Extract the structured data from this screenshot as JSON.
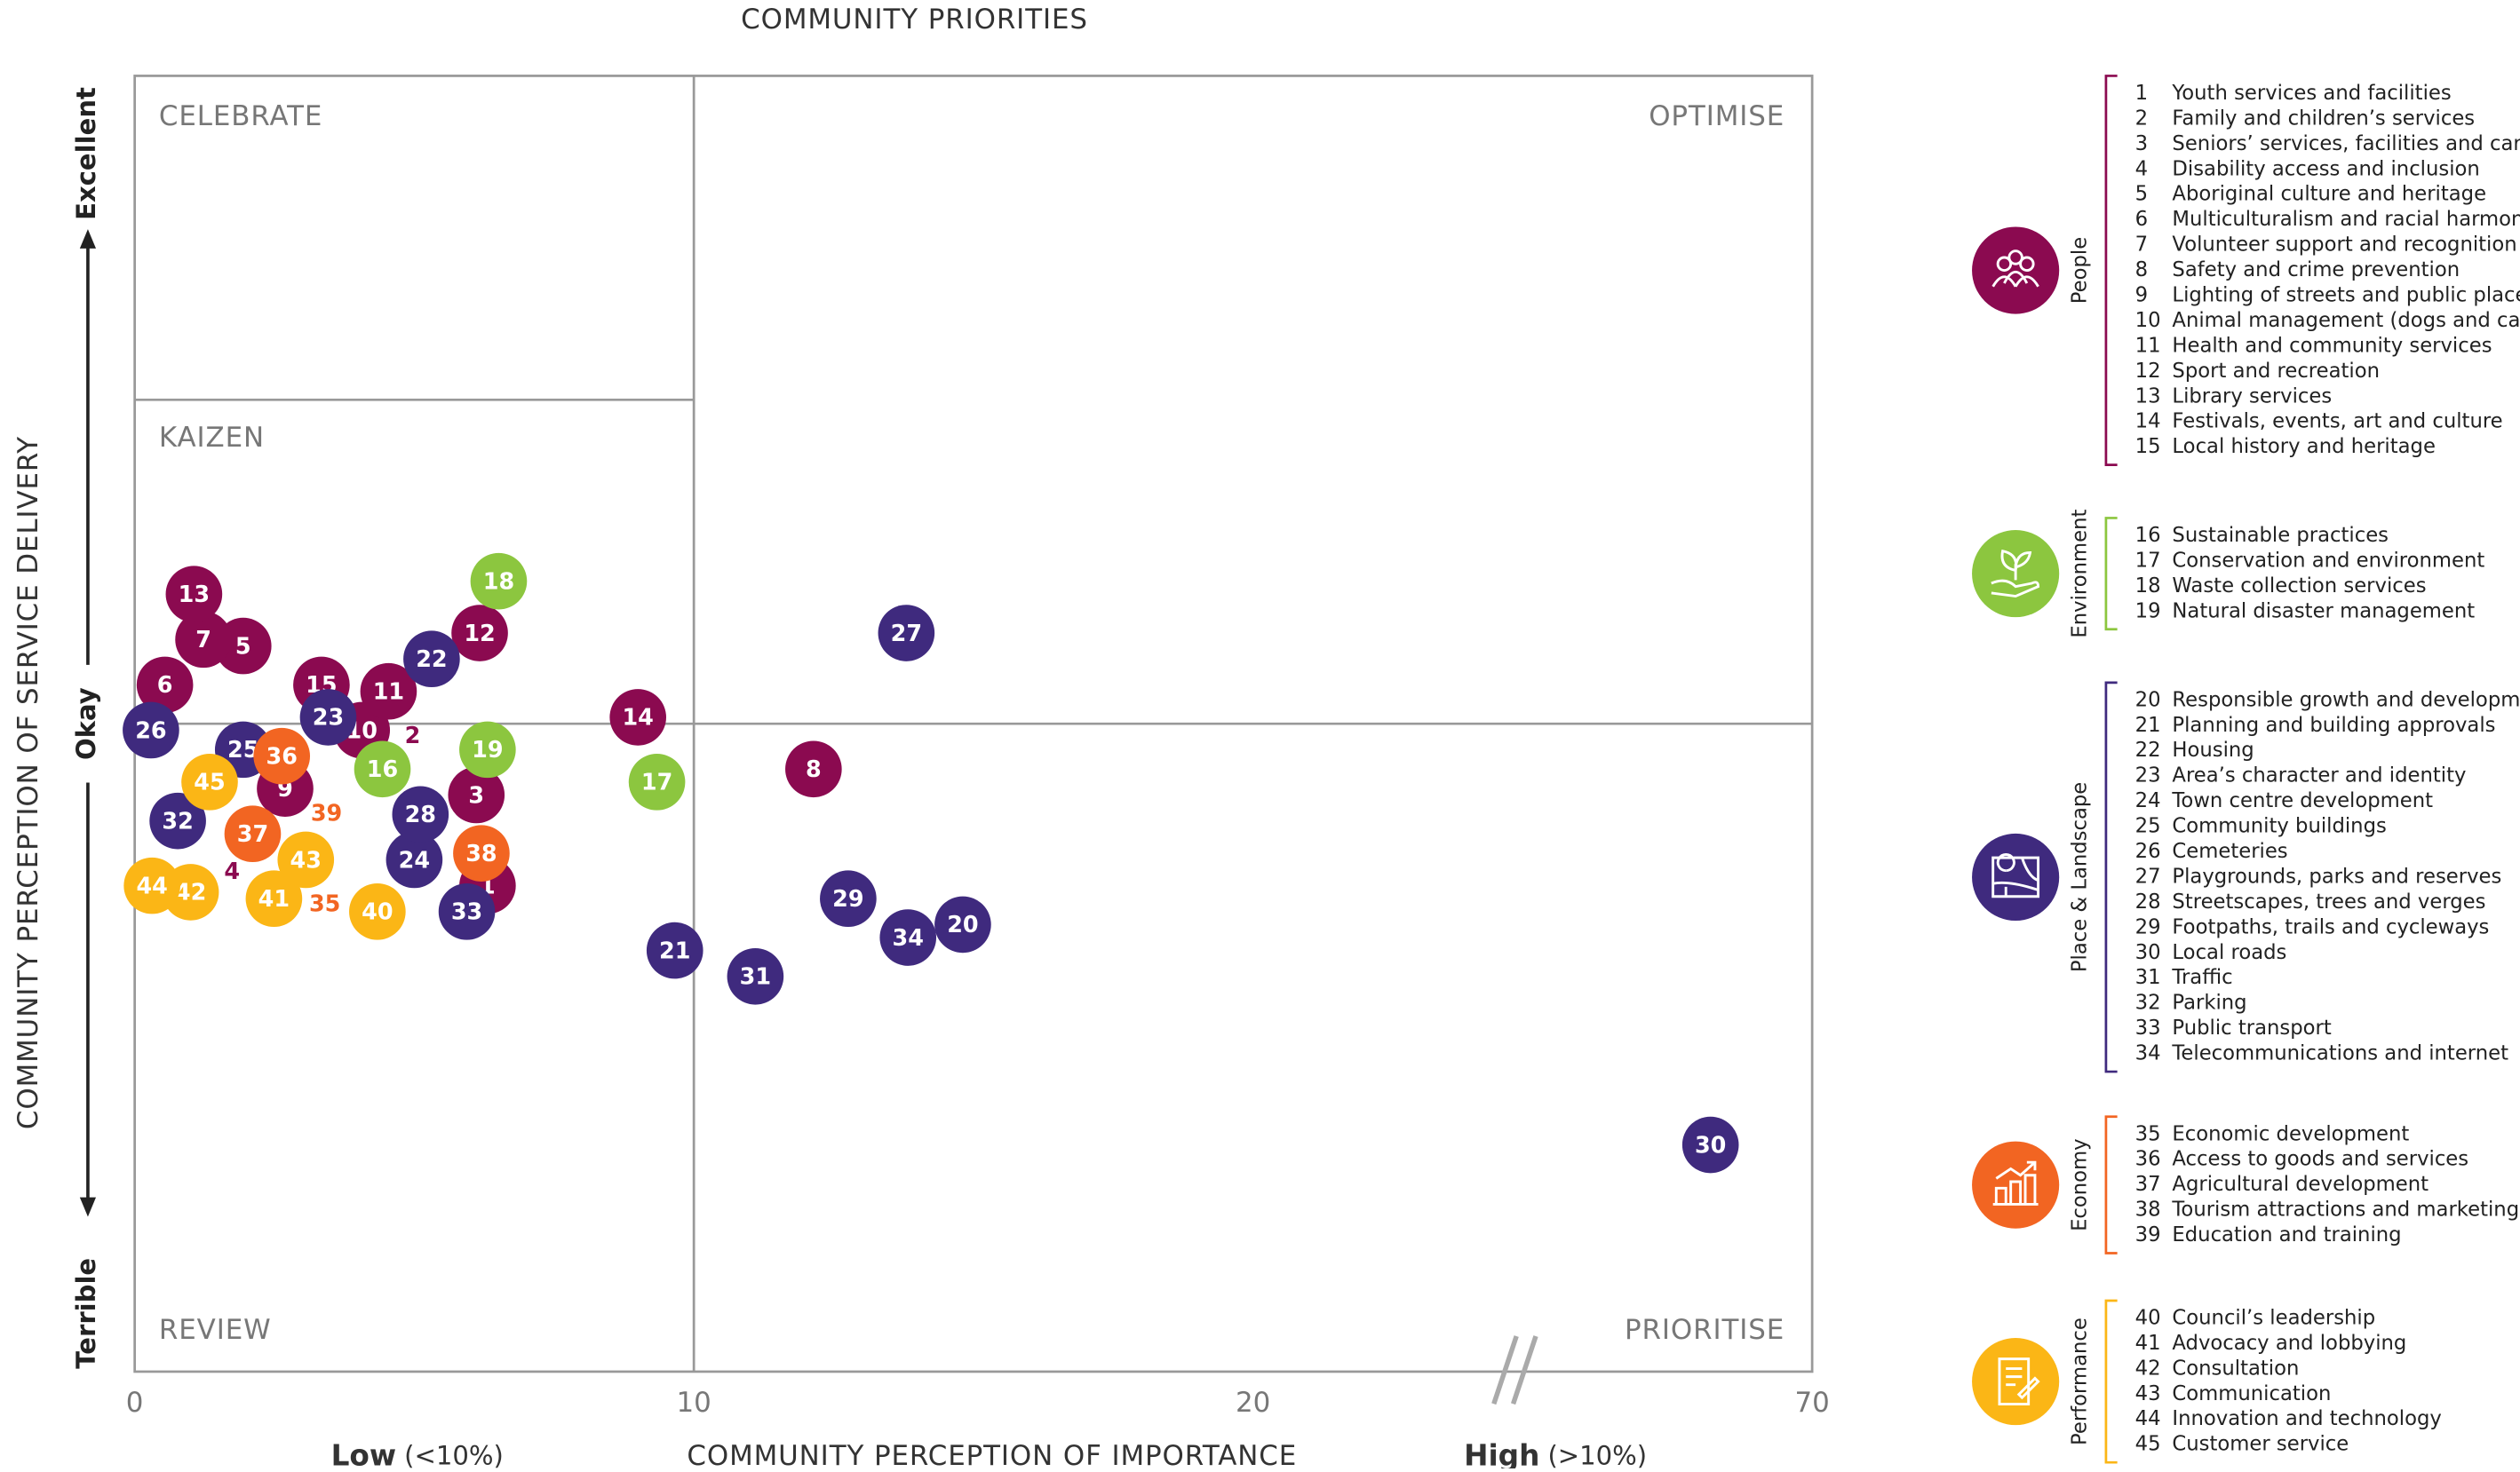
{
  "chart_data": {
    "type": "scatter",
    "title": "COMMUNITY PRIORITIES",
    "x_label": "COMMUNITY PERCEPTION OF IMPORTANCE",
    "y_label": "COMMUNITY PERCEPTION OF SERVICE DELIVERY",
    "x_annotations": [
      {
        "bold": "Low",
        "text": "(<10%)"
      },
      {
        "bold": "High",
        "text": "(>10%)"
      }
    ],
    "quadrants": [
      "CELEBRATE",
      "OPTIMISE",
      "KAIZEN",
      "REVIEW",
      "PRIORITISE"
    ],
    "quadrant_split": {
      "x": 10,
      "y": 0,
      "y_upper": 0.5
    },
    "xlim": [
      0,
      70
    ],
    "xticks": [
      0,
      10,
      20,
      70
    ],
    "axis_break": true,
    "ylim": [
      -1,
      1
    ],
    "yticks": [
      {
        "value": 0.88,
        "label": "Excellent"
      },
      {
        "value": 0,
        "label": "Okay"
      },
      {
        "value": -0.91,
        "label": "Terrible"
      }
    ],
    "series": [
      {
        "name": "People",
        "color": "#8b0a50",
        "items": [
          {
            "id": 2,
            "label": "Family and children’s services",
            "x": 4.97,
            "y": -0.02,
            "style": "label"
          },
          {
            "id": 4,
            "label": "Disability access and inclusion",
            "x": 1.74,
            "y": -0.23,
            "style": "label"
          },
          {
            "id": 1,
            "label": "Youth services and facilities",
            "x": 6.31,
            "y": -0.25
          },
          {
            "id": 3,
            "label": "Seniors’ services, facilities and care",
            "x": 6.11,
            "y": -0.11
          },
          {
            "id": 5,
            "label": "Aboriginal culture and heritage",
            "x": 1.94,
            "y": 0.12
          },
          {
            "id": 6,
            "label": "Multiculturalism and racial harmony",
            "x": 0.54,
            "y": 0.06
          },
          {
            "id": 7,
            "label": "Volunteer support and recognition",
            "x": 1.23,
            "y": 0.13
          },
          {
            "id": 8,
            "label": "Safety and crime prevention",
            "x": 12.14,
            "y": -0.07
          },
          {
            "id": 9,
            "label": "Lighting of streets and public places",
            "x": 2.69,
            "y": -0.1
          },
          {
            "id": 10,
            "label": "Animal management (dogs and cats)",
            "x": 4.06,
            "y": -0.01
          },
          {
            "id": 11,
            "label": "Health and community services",
            "x": 4.54,
            "y": 0.05
          },
          {
            "id": 12,
            "label": "Sport and recreation",
            "x": 6.17,
            "y": 0.14
          },
          {
            "id": 13,
            "label": "Library services",
            "x": 1.06,
            "y": 0.2
          },
          {
            "id": 14,
            "label": "Festivals, events, art and culture",
            "x": 9.0,
            "y": 0.01
          },
          {
            "id": 15,
            "label": "Local history and heritage",
            "x": 3.34,
            "y": 0.06
          }
        ]
      },
      {
        "name": "Environment",
        "color": "#8cc63f",
        "items": [
          {
            "id": 16,
            "label": "Sustainable practices",
            "x": 4.43,
            "y": -0.07
          },
          {
            "id": 17,
            "label": "Conservation and environment",
            "x": 9.34,
            "y": -0.09
          },
          {
            "id": 18,
            "label": "Waste collection services",
            "x": 6.51,
            "y": 0.22
          },
          {
            "id": 19,
            "label": "Natural disaster management",
            "x": 6.31,
            "y": -0.04
          }
        ]
      },
      {
        "name": "Place & Landscape",
        "color": "#3f2a7e",
        "items": [
          {
            "id": 20,
            "label": "Responsible growth and development",
            "x": 14.81,
            "y": -0.31
          },
          {
            "id": 21,
            "label": "Planning and building approvals",
            "x": 9.66,
            "y": -0.35
          },
          {
            "id": 22,
            "label": "Housing",
            "x": 5.31,
            "y": 0.1
          },
          {
            "id": 23,
            "label": "Area’s character and identity",
            "x": 3.46,
            "y": 0.01
          },
          {
            "id": 24,
            "label": "Town centre development",
            "x": 5.0,
            "y": -0.21
          },
          {
            "id": 25,
            "label": "Community buildings",
            "x": 1.94,
            "y": -0.04
          },
          {
            "id": 26,
            "label": "Cemeteries",
            "x": 0.29,
            "y": -0.01
          },
          {
            "id": 27,
            "label": "Playgrounds, parks and reserves",
            "x": 13.8,
            "y": 0.14
          },
          {
            "id": 28,
            "label": "Streetscapes, trees and verges",
            "x": 5.11,
            "y": -0.14
          },
          {
            "id": 29,
            "label": "Footpaths, trails and cycleways",
            "x": 12.76,
            "y": -0.27
          },
          {
            "id": 30,
            "label": "Local roads",
            "x": 60.91,
            "y": -0.65
          },
          {
            "id": 31,
            "label": "Traffic",
            "x": 11.1,
            "y": -0.39
          },
          {
            "id": 32,
            "label": "Parking",
            "x": 0.77,
            "y": -0.15
          },
          {
            "id": 33,
            "label": "Public transport",
            "x": 5.94,
            "y": -0.29
          },
          {
            "id": 34,
            "label": "Telecommunications and internet",
            "x": 13.83,
            "y": -0.33
          }
        ]
      },
      {
        "name": "Economy",
        "color": "#f26522",
        "items": [
          {
            "id": 35,
            "label": "Economic development",
            "x": 3.4,
            "y": -0.28,
            "style": "label"
          },
          {
            "id": 39,
            "label": "Education and training",
            "x": 3.43,
            "y": -0.14,
            "style": "label"
          },
          {
            "id": 36,
            "label": "Access to goods and services",
            "x": 2.63,
            "y": -0.05
          },
          {
            "id": 37,
            "label": "Agricultural development",
            "x": 2.11,
            "y": -0.17
          },
          {
            "id": 38,
            "label": "Tourism attractions and marketing",
            "x": 6.2,
            "y": -0.2
          }
        ]
      },
      {
        "name": "Performance",
        "color": "#fbb616",
        "items": [
          {
            "id": 40,
            "label": "Council’s leadership",
            "x": 4.34,
            "y": -0.29
          },
          {
            "id": 41,
            "label": "Advocacy and lobbying",
            "x": 2.49,
            "y": -0.27
          },
          {
            "id": 42,
            "label": "Consultation",
            "x": 1.0,
            "y": -0.26
          },
          {
            "id": 43,
            "label": "Communication",
            "x": 3.06,
            "y": -0.21
          },
          {
            "id": 44,
            "label": "Innovation and technology",
            "x": 0.31,
            "y": -0.25
          },
          {
            "id": 45,
            "label": "Customer service",
            "x": 1.34,
            "y": -0.09
          }
        ]
      }
    ]
  }
}
